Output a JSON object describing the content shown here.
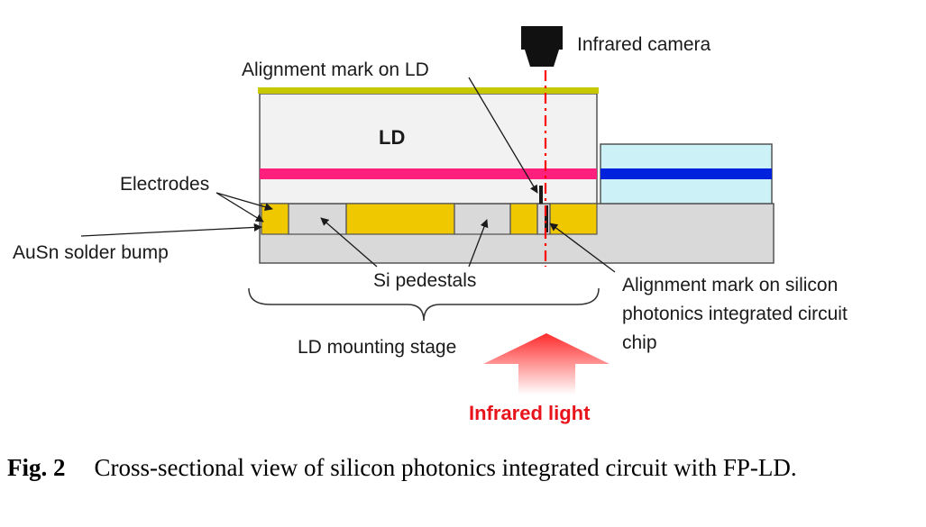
{
  "diagram": {
    "labels": {
      "infrared_camera": "Infrared camera",
      "alignment_mark_ld": "Alignment mark on LD",
      "ld": "LD",
      "electrodes": "Electrodes",
      "ausn_solder_bump": "AuSn solder bump",
      "si_pedestals": "Si pedestals",
      "alignment_mark_si_line1": "Alignment mark on silicon",
      "alignment_mark_si_line2": "photonics integrated circuit",
      "alignment_mark_si_line3": "chip",
      "ld_mounting_stage": "LD mounting stage",
      "infrared_light": "Infrared light"
    },
    "colors": {
      "ld_body": "#f2f2f2",
      "active_layer": "#ff1f7d",
      "top_electrode": "#c8c800",
      "solder": "#f0c800",
      "si_chip": "#d9d9d9",
      "waveguide_clad": "#ccf2f7",
      "waveguide_core": "#0022dd",
      "optical_axis": "#ff0000",
      "infrared_arrow": "#ff3b3b"
    }
  },
  "caption": {
    "fig_label": "Fig. 2",
    "text": "Cross-sectional view of silicon photonics integrated circuit with FP-LD."
  }
}
